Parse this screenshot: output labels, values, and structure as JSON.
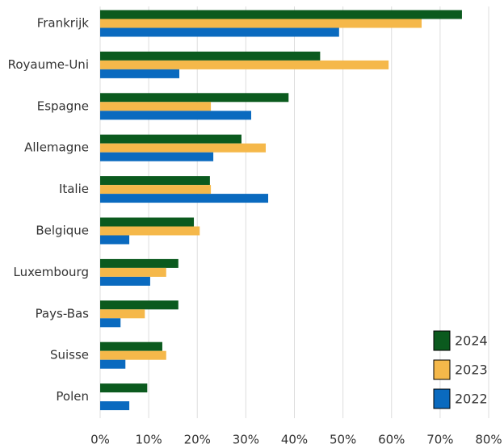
{
  "chart_data": {
    "type": "hbar",
    "categories": [
      "Frankrijk",
      "Royaume-Uni",
      "Espagne",
      "Allemagne",
      "Italie",
      "Belgique",
      "Luxembourg",
      "Pays-Bas",
      "Suisse",
      "Polen"
    ],
    "series": [
      {
        "name": "2024",
        "color": "#0b5a1e",
        "values": [
          74.5,
          45.3,
          38.8,
          29.1,
          22.6,
          19.3,
          16.1,
          16.1,
          12.8,
          9.7
        ]
      },
      {
        "name": "2023",
        "color": "#f5b84a",
        "values": [
          66.2,
          59.4,
          22.8,
          34.1,
          22.8,
          20.5,
          13.6,
          9.2,
          13.6,
          null
        ]
      },
      {
        "name": "2022",
        "color": "#0a6abf",
        "values": [
          49.2,
          16.3,
          31.1,
          23.3,
          34.6,
          6.0,
          10.3,
          4.2,
          5.2,
          6.0
        ]
      }
    ],
    "xlim": [
      0,
      80
    ],
    "xticks": [
      {
        "value": 0,
        "label": "0%"
      },
      {
        "value": 10,
        "label": "10%"
      },
      {
        "value": 20,
        "label": "20%"
      },
      {
        "value": 30,
        "label": "30%"
      },
      {
        "value": 40,
        "label": "40%"
      },
      {
        "value": 50,
        "label": "50%"
      },
      {
        "value": 60,
        "label": "60%"
      },
      {
        "value": 70,
        "label": "70%"
      },
      {
        "value": 80,
        "label": "80%"
      }
    ],
    "grid": true,
    "legend": "lower right"
  }
}
